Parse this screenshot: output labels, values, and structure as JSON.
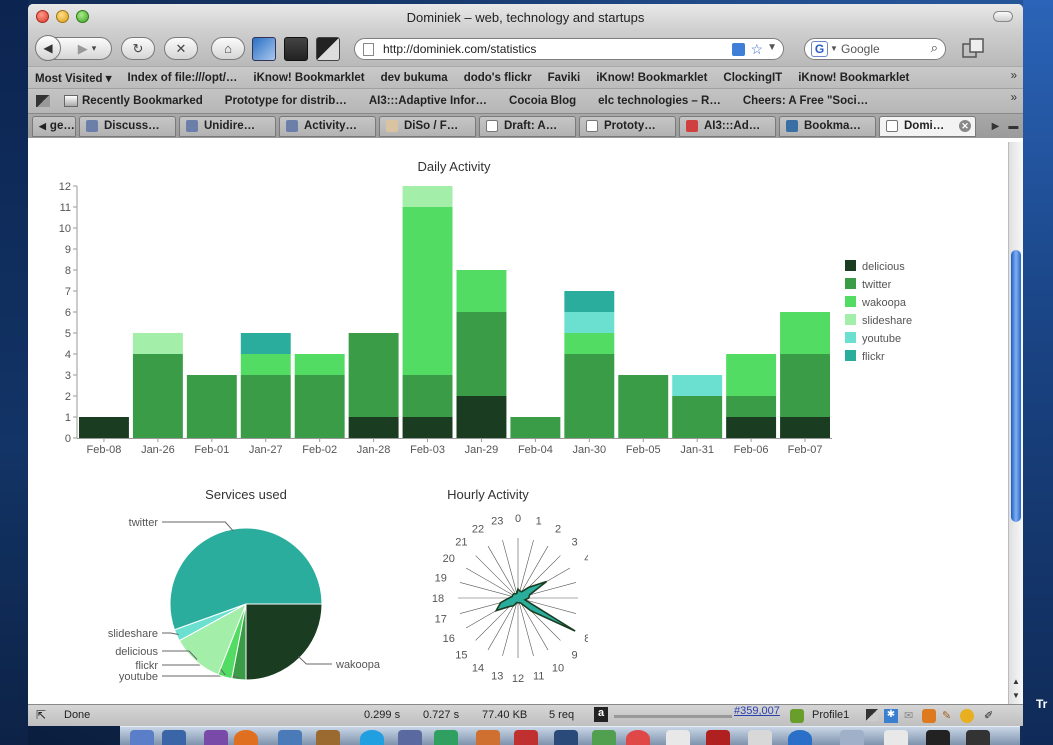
{
  "window": {
    "title": "Dominiek – web, technology and startups"
  },
  "nav": {
    "url": "http://dominiek.com/statistics",
    "search_placeholder": "Google"
  },
  "bookmarks_toolbar": {
    "items": [
      "Most Visited ▾",
      "Index of file:///opt/…",
      "iKnow! Bookmarklet",
      "dev bukuma",
      "dodo's flickr",
      "Faviki",
      "iKnow! Bookmarklet",
      "ClockingIT",
      "iKnow! Bookmarklet"
    ],
    "more": "»"
  },
  "bookmarks_toolbar2": {
    "items": [
      "Recently Bookmarked",
      "Prototype for distrib…",
      "AI3:::Adaptive Infor…",
      "Cocoia Blog",
      "elc technologies – R…",
      "Cheers: A Free \"Soci…"
    ],
    "more": "»"
  },
  "tabs": [
    {
      "label": "ge…",
      "icon_color": "#b0b0b0"
    },
    {
      "label": "Discuss…",
      "icon_color": "#6b7fa8"
    },
    {
      "label": "Unidire…",
      "icon_color": "#6b7fa8"
    },
    {
      "label": "Activity…",
      "icon_color": "#6b7fa8"
    },
    {
      "label": "DiSo / F…",
      "icon_color": "#d9c3a0"
    },
    {
      "label": "Draft: A…",
      "icon_color": "#ffffff"
    },
    {
      "label": "Prototy…",
      "icon_color": "#ffffff"
    },
    {
      "label": "AI3:::Ad…",
      "icon_color": "#d04040"
    },
    {
      "label": "Bookma…",
      "icon_color": "#3a6fa6"
    },
    {
      "label": "Domi…",
      "icon_color": "#ffffff",
      "active": true
    }
  ],
  "charts": {
    "daily_title": "Daily Activity",
    "services_title": "Services used",
    "hourly_title": "Hourly Activity"
  },
  "chart_data": [
    {
      "type": "bar",
      "title": "Daily Activity",
      "stacked": true,
      "categories": [
        "Feb-08",
        "Jan-26",
        "Feb-01",
        "Jan-27",
        "Feb-02",
        "Jan-28",
        "Feb-03",
        "Jan-29",
        "Feb-04",
        "Jan-30",
        "Feb-05",
        "Jan-31",
        "Feb-06",
        "Feb-07"
      ],
      "ylim": [
        0,
        12
      ],
      "yticks": [
        0,
        1,
        2,
        3,
        4,
        5,
        6,
        7,
        8,
        9,
        10,
        11,
        12
      ],
      "grid": false,
      "legend_position": "right",
      "series": [
        {
          "name": "delicious",
          "color": "#1a3d22",
          "values": [
            1,
            0,
            0,
            0,
            0,
            1,
            1,
            2,
            0,
            0,
            0,
            0,
            1,
            1
          ]
        },
        {
          "name": "twitter",
          "color": "#3a9c47",
          "values": [
            0,
            4,
            3,
            3,
            3,
            4,
            2,
            4,
            1,
            4,
            3,
            2,
            1,
            3
          ]
        },
        {
          "name": "wakoopa",
          "color": "#52dc64",
          "values": [
            0,
            0,
            0,
            1,
            1,
            0,
            8,
            2,
            0,
            1,
            0,
            0,
            2,
            2
          ]
        },
        {
          "name": "slideshare",
          "color": "#a3eea8",
          "values": [
            0,
            1,
            0,
            0,
            0,
            0,
            1,
            0,
            0,
            0,
            0,
            0,
            0,
            0
          ]
        },
        {
          "name": "youtube",
          "color": "#6be0d0",
          "values": [
            0,
            0,
            0,
            0,
            0,
            0,
            0,
            0,
            0,
            1,
            0,
            1,
            0,
            0
          ]
        },
        {
          "name": "flickr",
          "color": "#2aad9c",
          "values": [
            0,
            0,
            0,
            1,
            0,
            0,
            0,
            0,
            0,
            1,
            0,
            0,
            0,
            0
          ]
        }
      ]
    },
    {
      "type": "pie",
      "title": "Services used",
      "slices": [
        {
          "label": "wakoopa",
          "value": 25,
          "color": "#1a3d22"
        },
        {
          "label": "youtube",
          "value": 3,
          "color": "#3a9c47"
        },
        {
          "label": "flickr",
          "value": 3,
          "color": "#52dc64"
        },
        {
          "label": "delicious",
          "value": 11,
          "color": "#a3eea8"
        },
        {
          "label": "slideshare",
          "value": 2.5,
          "color": "#6be0d0"
        },
        {
          "label": "twitter",
          "value": 55.5,
          "color": "#2aad9c"
        }
      ]
    },
    {
      "type": "radar",
      "title": "Hourly Activity",
      "axes": [
        "0",
        "1",
        "2",
        "3",
        "4",
        "5",
        "6",
        "7",
        "8",
        "9",
        "10",
        "11",
        "12",
        "13",
        "14",
        "15",
        "16",
        "17",
        "18",
        "19",
        "20",
        "21",
        "22",
        "23"
      ],
      "values": [
        1.5,
        1.2,
        1.2,
        2.5,
        5.5,
        2.0,
        1.8,
        1.2,
        11,
        3.0,
        1.0,
        0.8,
        0.8,
        0.8,
        1.5,
        2.0,
        4.2,
        3.0,
        1.5,
        1.0,
        1.0,
        1.0,
        0.8,
        0.8
      ],
      "rmax": 11,
      "color": "#1a3d22",
      "fill": "#2aad9c"
    }
  ],
  "statusbar": {
    "done": "Done",
    "t1": "0.299 s",
    "t2": "0.727 s",
    "size": "77.40 KB",
    "req": "5 req",
    "alexa_rank": "#359,007",
    "profile": "Profile1"
  },
  "desktop": {
    "right_text": "Tr"
  }
}
